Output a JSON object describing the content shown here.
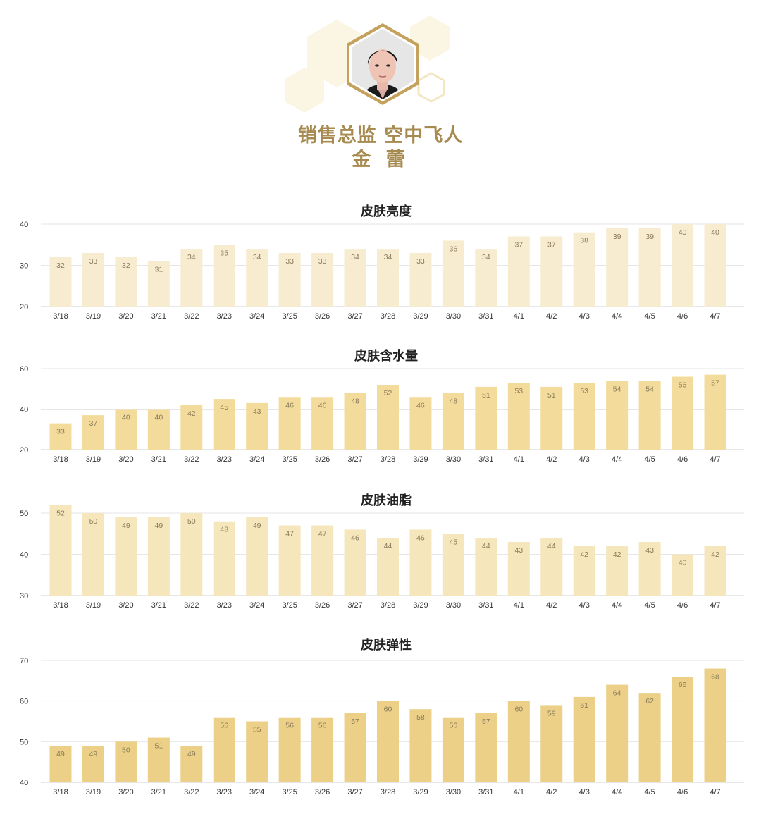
{
  "header": {
    "line1": "销售总监 空中飞人",
    "line2": "金 蕾",
    "photo_icon": "portrait-photo"
  },
  "colors": {
    "title_gold": "#a68a4f",
    "hex_light": "#f7efd6"
  },
  "chart_data": [
    {
      "type": "bar",
      "title": "皮肤亮度",
      "categories": [
        "3/18",
        "3/19",
        "3/20",
        "3/21",
        "3/22",
        "3/23",
        "3/24",
        "3/25",
        "3/26",
        "3/27",
        "3/28",
        "3/29",
        "3/30",
        "3/31",
        "4/1",
        "4/2",
        "4/3",
        "4/4",
        "4/5",
        "4/6",
        "4/7"
      ],
      "values": [
        32,
        33,
        32,
        31,
        34,
        35,
        34,
        33,
        33,
        34,
        34,
        33,
        36,
        34,
        37,
        37,
        38,
        39,
        39,
        40,
        40
      ],
      "ylim": [
        20,
        40
      ],
      "yticks": [
        20,
        30,
        40
      ],
      "color": "#f8ecd0",
      "grid": true
    },
    {
      "type": "bar",
      "title": "皮肤含水量",
      "categories": [
        "3/18",
        "3/19",
        "3/20",
        "3/21",
        "3/22",
        "3/23",
        "3/24",
        "3/25",
        "3/26",
        "3/27",
        "3/28",
        "3/29",
        "3/30",
        "3/31",
        "4/1",
        "4/2",
        "4/3",
        "4/4",
        "4/5",
        "4/6",
        "4/7"
      ],
      "values": [
        33,
        37,
        40,
        40,
        42,
        45,
        43,
        46,
        46,
        48,
        52,
        46,
        48,
        51,
        53,
        51,
        53,
        54,
        54,
        56,
        57
      ],
      "ylim": [
        20,
        60
      ],
      "yticks": [
        20,
        40,
        60
      ],
      "color": "#f3dc9b",
      "grid": true
    },
    {
      "type": "bar",
      "title": "皮肤油脂",
      "categories": [
        "3/18",
        "3/19",
        "3/20",
        "3/21",
        "3/22",
        "3/23",
        "3/24",
        "3/25",
        "3/26",
        "3/27",
        "3/28",
        "3/29",
        "3/30",
        "3/31",
        "4/1",
        "4/2",
        "4/3",
        "4/4",
        "4/5",
        "4/6",
        "4/7"
      ],
      "values": [
        52,
        50,
        49,
        49,
        50,
        48,
        49,
        47,
        47,
        46,
        44,
        46,
        45,
        44,
        43,
        44,
        42,
        42,
        43,
        40,
        42
      ],
      "ylim": [
        30,
        50
      ],
      "yticks": [
        30,
        40,
        50
      ],
      "color": "#f5e6bc",
      "grid": true
    },
    {
      "type": "bar",
      "title": "皮肤弹性",
      "categories": [
        "3/18",
        "3/19",
        "3/20",
        "3/21",
        "3/22",
        "3/23",
        "3/24",
        "3/25",
        "3/26",
        "3/27",
        "3/28",
        "3/29",
        "3/30",
        "3/31",
        "4/1",
        "4/2",
        "4/3",
        "4/4",
        "4/5",
        "4/6",
        "4/7"
      ],
      "values": [
        49,
        49,
        50,
        51,
        49,
        56,
        55,
        56,
        56,
        57,
        60,
        58,
        56,
        57,
        60,
        59,
        61,
        64,
        62,
        66,
        68
      ],
      "ylim": [
        40,
        70
      ],
      "yticks": [
        40,
        50,
        60,
        70
      ],
      "color": "#ecd087",
      "grid": true
    }
  ]
}
